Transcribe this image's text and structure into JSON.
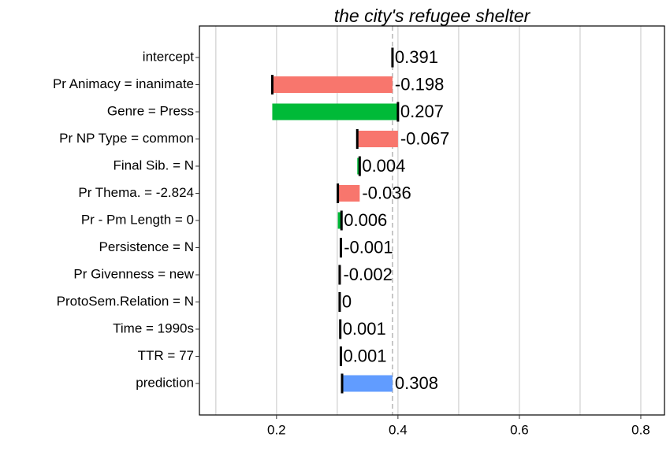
{
  "chart_data": {
    "type": "waterfall",
    "title": "the city's refugee shelter",
    "categories": [
      "intercept",
      "Pr Animacy = inanimate",
      "Genre = Press",
      "Pr NP Type = common",
      "Final Sib. = N",
      "Pr Thema. = -2.824",
      "Pr - Pm Length = 0",
      "Persistence = N",
      "Pr Givenness = new",
      "ProtoSem.Relation = N",
      "Time = 1990s",
      "TTR = 77",
      "prediction"
    ],
    "values": [
      0.391,
      -0.198,
      0.207,
      -0.067,
      0.004,
      -0.036,
      0.006,
      -0.001,
      -0.002,
      0,
      0.001,
      0.001,
      0.308
    ],
    "colors": {
      "positive": "#00ba38",
      "negative": "#f8766d",
      "prediction": "#619cff"
    },
    "xlim": [
      0.073,
      0.839
    ],
    "xticks": [
      0.2,
      0.4,
      0.6,
      0.8
    ],
    "minor_grid": [
      0.1,
      0.3,
      0.5,
      0.7
    ],
    "grid": true
  }
}
